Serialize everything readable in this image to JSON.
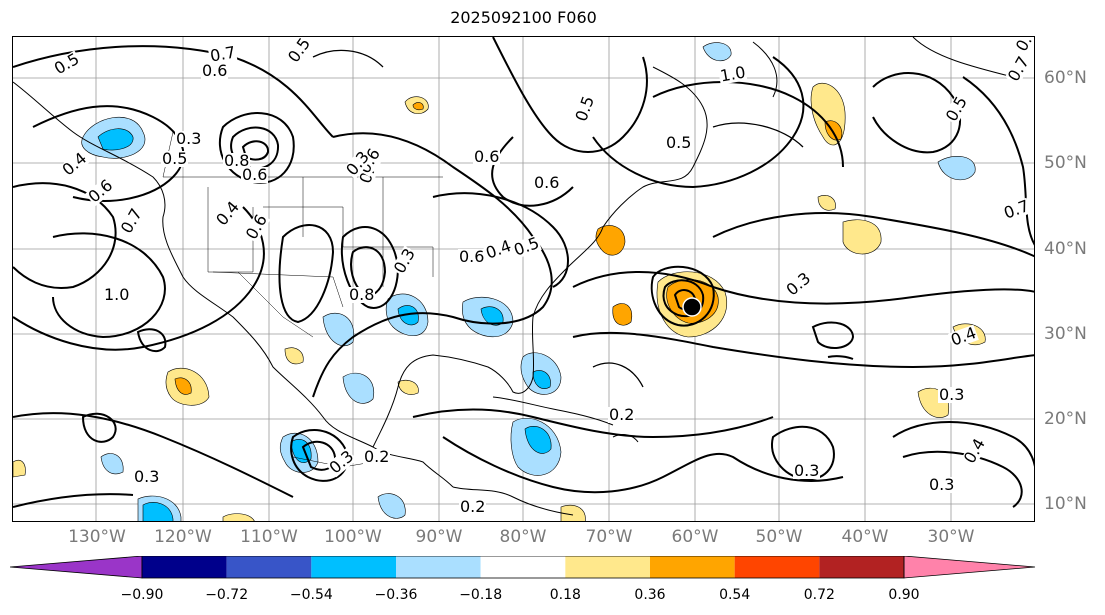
{
  "title": "2025092100 F060",
  "lat_labels": [
    "60°N",
    "50°N",
    "40°N",
    "30°N",
    "20°N",
    "10°N"
  ],
  "lon_labels": [
    "130°W",
    "120°W",
    "110°W",
    "100°W",
    "90°W",
    "80°W",
    "70°W",
    "60°W",
    "50°W",
    "40°W",
    "30°W"
  ],
  "colorbar": {
    "ticks": [
      "−0.90",
      "−0.72",
      "−0.54",
      "−0.36",
      "−0.18",
      "0.18",
      "0.36",
      "0.54",
      "0.72",
      "0.90"
    ],
    "colors": [
      "#9a35c8",
      "#00008b",
      "#3855c8",
      "#00bfff",
      "#aadfff",
      "#ffffff",
      "#ffe88c",
      "#ffa500",
      "#ff4500",
      "#b22222",
      "#ff82aa"
    ]
  },
  "contour_labels": [
    "0.7",
    "0.6",
    "0.5",
    "0.5",
    "0.5",
    "0.4",
    "0.6",
    "0.3",
    "0.8",
    "0.6",
    "0.5",
    "0.6",
    "0.4",
    "0.7",
    "1.0",
    "0.4",
    "0.8",
    "0.6",
    "0.5",
    "0.4",
    "0.6",
    "0.3",
    "1.0",
    "0.5",
    "0.7",
    "0.3",
    "0.2",
    "0.2",
    "0.3",
    "0.2",
    "0.3",
    "0.3",
    "0.6",
    "0.3",
    "0.4",
    "0.3",
    "0.4",
    "0.3",
    "0.6",
    "0.7",
    "0.5",
    "0.7"
  ]
}
